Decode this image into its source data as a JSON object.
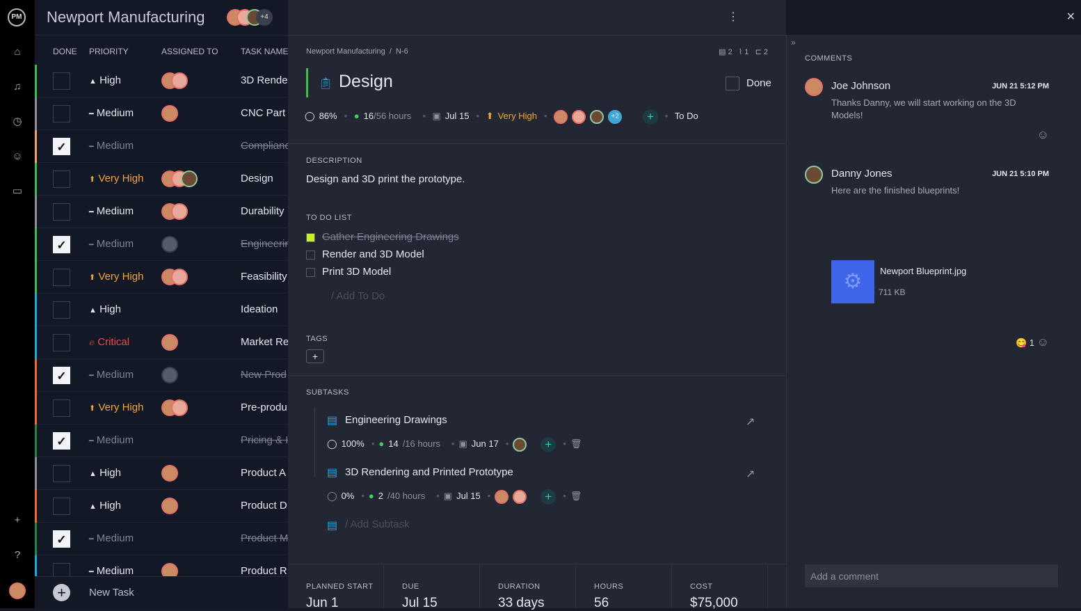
{
  "project": {
    "title": "Newport Manufacturing",
    "members_extra": "+4"
  },
  "rail": {
    "logo": "PM",
    "icons": [
      "home-icon",
      "bell-icon",
      "clock-icon",
      "users-icon",
      "briefcase-icon",
      "plus-icon",
      "help-icon"
    ]
  },
  "list": {
    "headers": {
      "done": "DONE",
      "priority": "PRIORITY",
      "assigned": "ASSIGNED TO",
      "task": "TASK NAME"
    },
    "rows": [
      {
        "done": false,
        "priority": "High",
        "level": "high",
        "avatars": 2,
        "task": "3D Rende",
        "stripe": "#3fbf4a"
      },
      {
        "done": false,
        "priority": "Medium",
        "level": "medium",
        "avatars": 1,
        "task": "CNC Part",
        "stripe": "#8d919c"
      },
      {
        "done": true,
        "priority": "Medium",
        "level": "medium",
        "avatars": 0,
        "task": "Compliance",
        "stripe": "#f2a36a"
      },
      {
        "done": false,
        "priority": "Very High",
        "level": "veryhigh",
        "avatars": 3,
        "task": "Design",
        "stripe": "#3fbf4a"
      },
      {
        "done": false,
        "priority": "Medium",
        "level": "medium",
        "avatars": 2,
        "task": "Durability",
        "stripe": "#8d919c"
      },
      {
        "done": true,
        "priority": "Medium",
        "level": "medium",
        "avatars": 1,
        "task": "Engineering",
        "stripe": "#3fbf4a"
      },
      {
        "done": false,
        "priority": "Very High",
        "level": "veryhigh",
        "avatars": 2,
        "task": "Feasibility",
        "stripe": "#3fbf4a"
      },
      {
        "done": false,
        "priority": "High",
        "level": "high",
        "avatars": 0,
        "task": "Ideation",
        "stripe": "#1fa8d8"
      },
      {
        "done": false,
        "priority": "Critical",
        "level": "critical",
        "avatars": 1,
        "task": "Market Re",
        "stripe": "#1fa8d8"
      },
      {
        "done": true,
        "priority": "Medium",
        "level": "medium",
        "avatars": 1,
        "task": "New Prod",
        "stripe": "#f06a2a"
      },
      {
        "done": false,
        "priority": "Very High",
        "level": "veryhigh",
        "avatars": 2,
        "task": "Pre-produ",
        "stripe": "#f06a2a"
      },
      {
        "done": true,
        "priority": "Medium",
        "level": "medium",
        "avatars": 0,
        "task": "Pricing & I",
        "stripe": "#1e8a45"
      },
      {
        "done": false,
        "priority": "High",
        "level": "high",
        "avatars": 1,
        "task": "Product A",
        "stripe": "#8d919c"
      },
      {
        "done": false,
        "priority": "High",
        "level": "high",
        "avatars": 1,
        "task": "Product D",
        "stripe": "#f06a2a"
      },
      {
        "done": true,
        "priority": "Medium",
        "level": "medium",
        "avatars": 0,
        "task": "Product M",
        "stripe": "#1e8a45"
      },
      {
        "done": false,
        "priority": "Medium",
        "level": "medium",
        "avatars": 1,
        "task": "Product R",
        "stripe": "#1fa8d8"
      }
    ],
    "new_task": "New Task"
  },
  "detail": {
    "breadcrumb": "Newport Manufacturing  /  N-6",
    "counts": {
      "comments": "2",
      "attachments": "1",
      "subtasks": "2"
    },
    "title": "Design",
    "done_label": "Done",
    "progress": "86%",
    "hours_done": "16",
    "hours_total": "/56 hours",
    "due": "Jul 15",
    "priority": "Very High",
    "assignees_extra": "+2",
    "status": "To Do",
    "description_label": "DESCRIPTION",
    "description": "Design and 3D print the prototype.",
    "todo_label": "TO DO LIST",
    "todos": [
      {
        "text": "Gather Engineering Drawings",
        "done": true
      },
      {
        "text": "Render and 3D Model",
        "done": false
      },
      {
        "text": "Print 3D Model",
        "done": false
      }
    ],
    "add_todo": "/ Add To Do",
    "tags_label": "TAGS",
    "subtasks_label": "SUBTASKS",
    "subtasks": [
      {
        "title": "Engineering Drawings",
        "progress": "100%",
        "hours_done": "14",
        "hours_total": "/16 hours",
        "due": "Jun 17"
      },
      {
        "title": "3D Rendering and Printed Prototype",
        "progress": "0%",
        "hours_done": "2",
        "hours_total": "/40 hours",
        "due": "Jul 15"
      }
    ],
    "add_subtask": "/ Add Subtask",
    "footer": [
      {
        "label": "PLANNED START",
        "value": "Jun 1"
      },
      {
        "label": "DUE",
        "value": "Jul 15"
      },
      {
        "label": "DURATION",
        "value": "33 days"
      },
      {
        "label": "HOURS",
        "value": "56"
      },
      {
        "label": "COST",
        "value": "$75,000"
      }
    ]
  },
  "comments": {
    "label": "COMMENTS",
    "items": [
      {
        "author": "Joe Johnson",
        "time": "JUN 21 5:12 PM",
        "text": "Thanks Danny, we will start working on the 3D Models!"
      },
      {
        "author": "Danny Jones",
        "time": "JUN 21 5:10 PM",
        "text": "Here are the finished blueprints!",
        "attachment": {
          "name": "Newport Blueprint.jpg",
          "size": "711 KB"
        },
        "reaction_count": "1"
      }
    ],
    "placeholder": "Add a comment"
  },
  "colors": {
    "accent": "#2fd1b5",
    "very_high": "#f2a33a",
    "critical": "#e9474b",
    "done_green": "#3fcf5a"
  }
}
